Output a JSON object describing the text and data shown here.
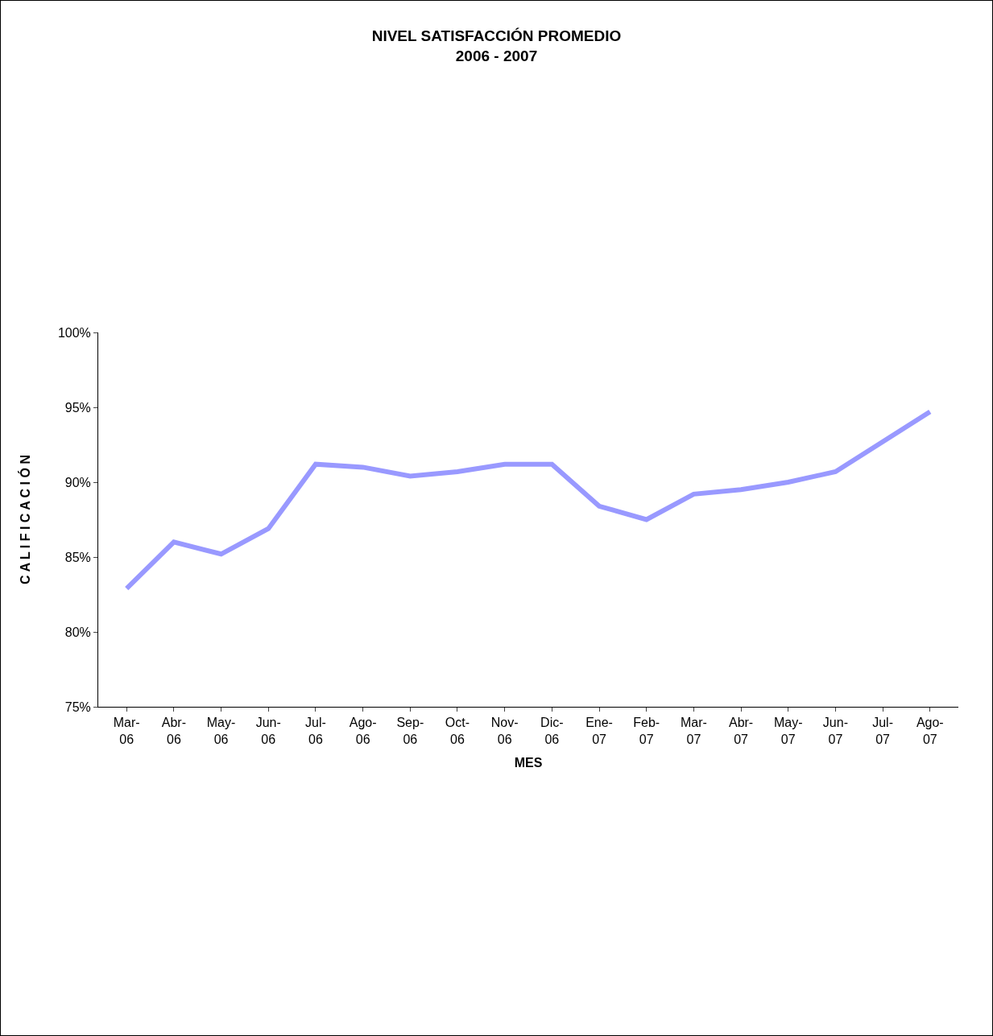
{
  "chart_data": {
    "type": "line",
    "title": "NIVEL SATISFACCIÓN PROMEDIO",
    "subtitle": "2006 - 2007",
    "xlabel": "MES",
    "ylabel": "C A L I F I C A C I Ó N",
    "categories": [
      "Mar-06",
      "Abr-06",
      "May-06",
      "Jun-06",
      "Jul-06",
      "Ago-06",
      "Sep-06",
      "Oct-06",
      "Nov-06",
      "Dic-06",
      "Ene-07",
      "Feb-07",
      "Mar-07",
      "Abr-07",
      "May-07",
      "Jun-07",
      "Jul-07",
      "Ago-07"
    ],
    "series": [
      {
        "color": "#9999ff",
        "values": [
          82.9,
          86.0,
          85.2,
          86.9,
          91.2,
          91.0,
          90.4,
          90.7,
          91.2,
          91.2,
          88.4,
          87.5,
          89.2,
          89.5,
          90.0,
          90.7,
          92.7,
          94.7
        ]
      }
    ],
    "ylim": [
      75,
      100
    ],
    "yticks": [
      {
        "value": 75,
        "label": "75%"
      },
      {
        "value": 80,
        "label": "80%"
      },
      {
        "value": 85,
        "label": "85%"
      },
      {
        "value": 90,
        "label": "90%"
      },
      {
        "value": 95,
        "label": "95%"
      },
      {
        "value": 100,
        "label": "100%"
      }
    ],
    "marker": "none",
    "line_style": "solid"
  }
}
